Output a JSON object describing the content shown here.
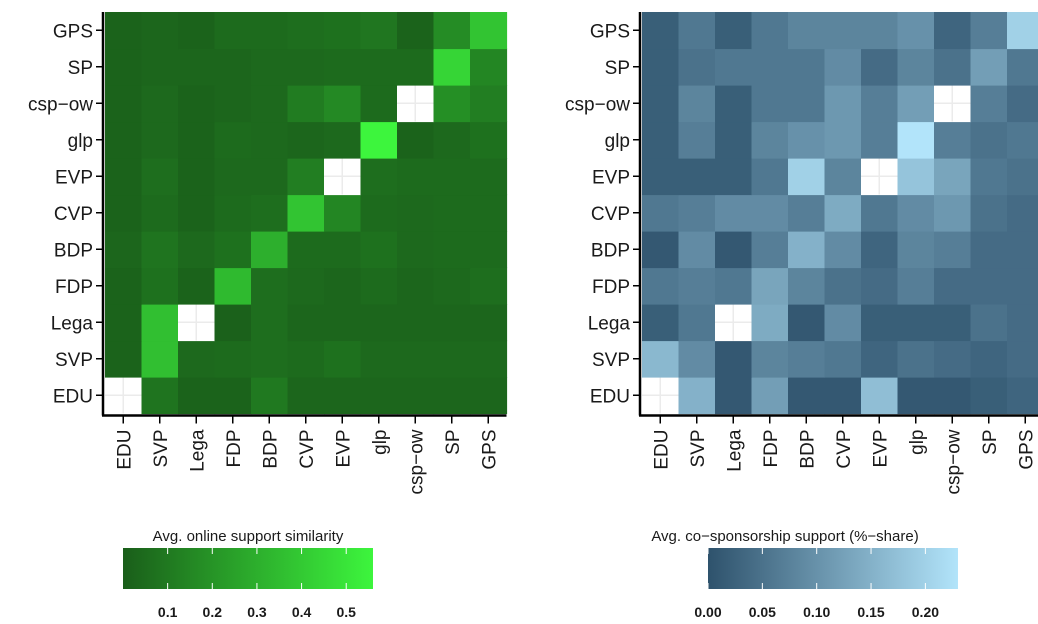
{
  "chart_data": [
    {
      "type": "heatmap",
      "title": "",
      "xlabel": "",
      "ylabel": "",
      "categories": [
        "EDU",
        "SVP",
        "Lega",
        "FDP",
        "BDP",
        "CVP",
        "EVP",
        "glp",
        "csp−ow",
        "SP",
        "GPS"
      ],
      "colorbar": {
        "title": "Avg. online support similarity",
        "ticks": [
          0.1,
          0.2,
          0.3,
          0.4,
          0.5
        ],
        "range": [
          0.0,
          0.56
        ],
        "low_color": "#1a5e1a",
        "high_color": "#3df53d"
      },
      "matrix_rows": "rows listed bottom-to-top (EDU ... GPS), columns left-to-right (EDU ... GPS); null = missing",
      "values": [
        [
          null,
          0.08,
          0.02,
          0.02,
          0.1,
          0.03,
          0.03,
          0.03,
          0.03,
          0.03,
          0.03
        ],
        [
          0.02,
          0.36,
          0.04,
          0.05,
          0.06,
          0.05,
          0.07,
          0.04,
          0.04,
          0.04,
          0.04
        ],
        [
          0.02,
          0.36,
          null,
          0.01,
          0.06,
          0.03,
          0.03,
          0.03,
          0.03,
          0.03,
          0.03
        ],
        [
          0.02,
          0.07,
          0.02,
          0.34,
          0.06,
          0.04,
          0.03,
          0.05,
          0.03,
          0.04,
          0.06
        ],
        [
          0.03,
          0.08,
          0.04,
          0.07,
          0.3,
          0.05,
          0.05,
          0.07,
          0.04,
          0.05,
          0.05
        ],
        [
          0.02,
          0.05,
          0.02,
          0.05,
          0.06,
          0.38,
          0.15,
          0.05,
          0.04,
          0.05,
          0.05
        ],
        [
          0.02,
          0.06,
          0.02,
          0.04,
          0.04,
          0.12,
          null,
          0.06,
          0.05,
          0.05,
          0.05
        ],
        [
          0.02,
          0.04,
          0.02,
          0.05,
          0.04,
          0.03,
          0.04,
          0.56,
          0.02,
          0.04,
          0.07
        ],
        [
          0.02,
          0.04,
          0.02,
          0.03,
          0.04,
          0.11,
          0.16,
          0.05,
          null,
          0.18,
          0.12
        ],
        [
          0.02,
          0.03,
          0.03,
          0.03,
          0.04,
          0.04,
          0.05,
          0.05,
          0.05,
          0.44,
          0.15
        ],
        [
          0.02,
          0.03,
          0.02,
          0.05,
          0.05,
          0.06,
          0.07,
          0.09,
          0.02,
          0.17,
          0.38
        ]
      ]
    },
    {
      "type": "heatmap",
      "title": "",
      "xlabel": "",
      "ylabel": "",
      "categories": [
        "EDU",
        "SVP",
        "Lega",
        "FDP",
        "BDP",
        "CVP",
        "EVP",
        "glp",
        "csp−ow",
        "SP",
        "GPS"
      ],
      "colorbar": {
        "title": "Avg. co−sponsorship support (%−share)",
        "ticks": [
          "0.00",
          "0.05",
          "0.10",
          "0.15",
          "0.20"
        ],
        "range": [
          0.0,
          0.23
        ],
        "low_color": "#2e526c",
        "high_color": "#b2e4fa"
      },
      "matrix_rows": "rows listed bottom-to-top (EDU ... GPS), columns left-to-right (EDU ... GPS); null = missing",
      "values": [
        [
          null,
          0.15,
          0.01,
          0.12,
          0.01,
          0.01,
          0.17,
          0.01,
          0.01,
          0.02,
          0.03
        ],
        [
          0.16,
          0.09,
          0.01,
          0.08,
          0.07,
          0.06,
          0.03,
          0.05,
          0.04,
          0.03,
          0.04
        ],
        [
          0.02,
          0.06,
          null,
          0.14,
          0.01,
          0.09,
          0.02,
          0.02,
          0.02,
          0.05,
          0.04
        ],
        [
          0.06,
          0.07,
          0.06,
          0.13,
          0.08,
          0.05,
          0.04,
          0.07,
          0.04,
          0.04,
          0.04
        ],
        [
          0.01,
          0.09,
          0.01,
          0.07,
          0.15,
          0.09,
          0.03,
          0.08,
          0.07,
          0.04,
          0.04
        ],
        [
          0.06,
          0.07,
          0.09,
          0.09,
          0.07,
          0.14,
          0.06,
          0.09,
          0.11,
          0.05,
          0.04
        ],
        [
          0.02,
          0.02,
          0.02,
          0.06,
          0.2,
          0.08,
          null,
          0.18,
          0.13,
          0.06,
          0.05
        ],
        [
          0.02,
          0.07,
          0.02,
          0.08,
          0.1,
          0.11,
          0.07,
          0.23,
          0.07,
          0.05,
          0.06
        ],
        [
          0.02,
          0.08,
          0.02,
          0.06,
          0.06,
          0.11,
          0.07,
          0.12,
          null,
          0.07,
          0.04
        ],
        [
          0.02,
          0.05,
          0.06,
          0.06,
          0.06,
          0.09,
          0.04,
          0.08,
          0.05,
          0.12,
          0.06
        ],
        [
          0.02,
          0.06,
          0.02,
          0.06,
          0.08,
          0.08,
          0.08,
          0.1,
          0.03,
          0.07,
          0.2
        ]
      ]
    }
  ]
}
